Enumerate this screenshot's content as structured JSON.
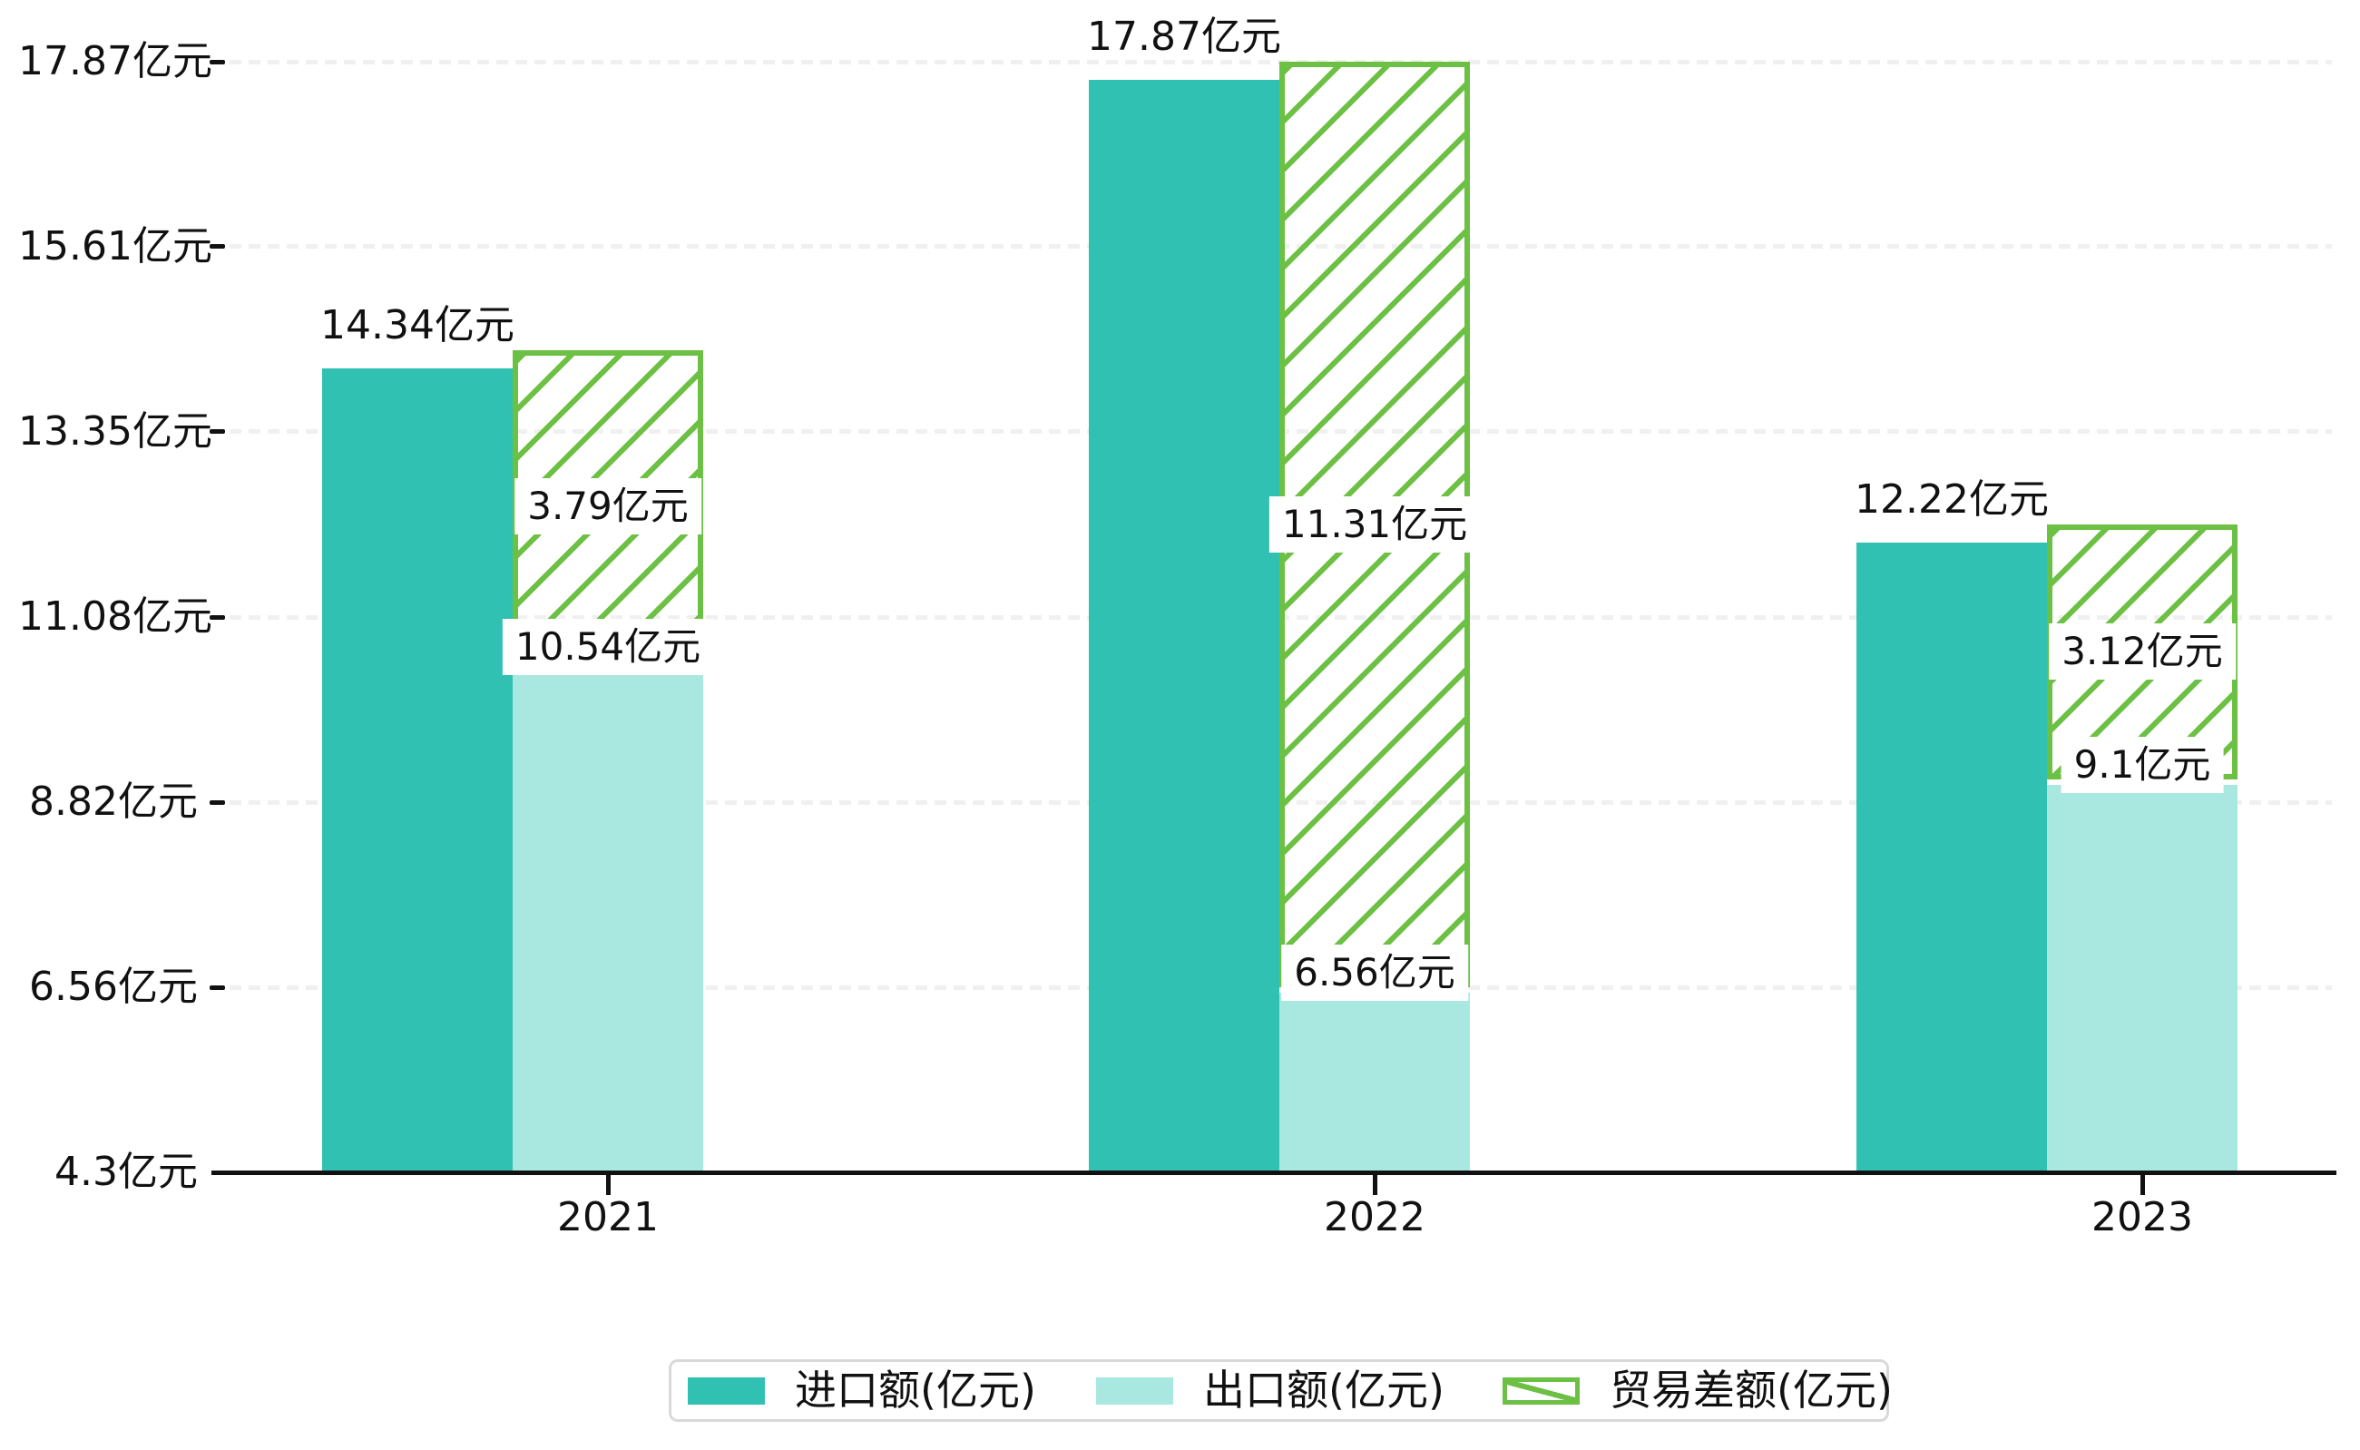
{
  "unit": "亿元",
  "colors": {
    "import": "#30c1b2",
    "export": "#a9e8e0",
    "diff": "#6cc044",
    "gridline": "#f0f0f0",
    "axis": "#111111",
    "legend_border": "#d9d9d9"
  },
  "chart_data": {
    "type": "bar",
    "title": "",
    "categories": [
      "2021",
      "2022",
      "2023"
    ],
    "series": [
      {
        "name": "进口额(亿元)",
        "role": "import",
        "values": [
          14.34,
          17.87,
          12.22
        ]
      },
      {
        "name": "出口额(亿元)",
        "role": "export",
        "values": [
          10.54,
          6.56,
          9.1
        ]
      },
      {
        "name": "贸易差额(亿元)",
        "role": "diff",
        "style": "hatched",
        "values": [
          3.79,
          11.31,
          3.12
        ]
      }
    ],
    "bar_labels": {
      "import": [
        "14.34亿元",
        "17.87亿元",
        "12.22亿元"
      ],
      "export": [
        "10.54亿元",
        "6.56亿元",
        "9.1亿元"
      ],
      "diff": [
        "3.79亿元",
        "11.31亿元",
        "3.12亿元"
      ]
    },
    "y_axis": {
      "min": 4.3,
      "max": 17.87,
      "tick_values": [
        4.3,
        6.56,
        8.82,
        11.08,
        13.35,
        15.61,
        17.87
      ],
      "tick_labels": [
        "4.3亿元",
        "6.56亿元",
        "8.82亿元",
        "11.08亿元",
        "13.35亿元",
        "15.61亿元",
        "17.87亿元"
      ],
      "tick_suffix": "亿元"
    },
    "x_axis": {
      "tick_labels": [
        "2021",
        "2022",
        "2023"
      ]
    },
    "grid": "horizontal dashed",
    "legend_position": "bottom",
    "note": "diff bar floats from export value up to import value"
  },
  "legend": {
    "items": [
      {
        "label": "进口额(亿元)"
      },
      {
        "label": "出口额(亿元)"
      },
      {
        "label": "贸易差额(亿元)"
      }
    ]
  }
}
